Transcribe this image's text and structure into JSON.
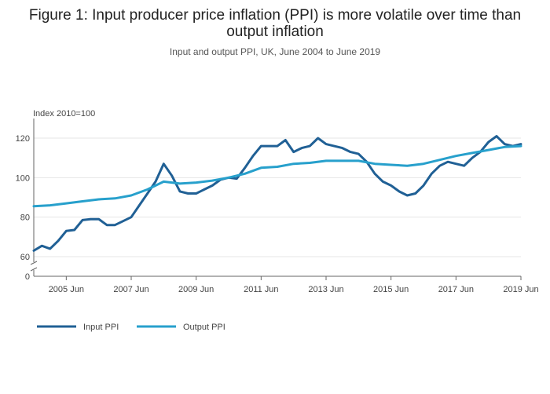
{
  "header": {
    "title_line1": "Figure 1: Input producer price inflation (PPI) is more volatile over time than",
    "title_line2": "output inflation",
    "subtitle": "Input and output PPI, UK, June 2004 to June 2019"
  },
  "chart_data": {
    "type": "line",
    "title": "Figure 1: Input producer price inflation (PPI) is more volatile over time than output inflation",
    "subtitle": "Input and output PPI, UK, June 2004 to June 2019",
    "ylabel": "Index 2010=100",
    "xlabel": "",
    "ylim": [
      60,
      130
    ],
    "y_axis_break": true,
    "y_ticks": [
      0,
      60,
      80,
      100,
      120
    ],
    "x_tick_labels": [
      "2005 Jun",
      "2007 Jun",
      "2009 Jun",
      "2011 Jun",
      "2013 Jun",
      "2015 Jun",
      "2017 Jun",
      "2019 Jun"
    ],
    "x_tick_dates": [
      "2005-06",
      "2007-06",
      "2009-06",
      "2011-06",
      "2013-06",
      "2015-06",
      "2017-06",
      "2019-06"
    ],
    "x_range": [
      "2004-06",
      "2019-06"
    ],
    "grid": true,
    "legend_position": "bottom-left",
    "series": [
      {
        "name": "Input PPI",
        "color": "#206095",
        "points": [
          [
            "2004-06",
            63
          ],
          [
            "2004-09",
            65.5
          ],
          [
            "2004-12",
            64
          ],
          [
            "2005-03",
            68
          ],
          [
            "2005-06",
            73
          ],
          [
            "2005-09",
            73.5
          ],
          [
            "2005-12",
            78.5
          ],
          [
            "2006-03",
            79
          ],
          [
            "2006-06",
            79
          ],
          [
            "2006-09",
            76
          ],
          [
            "2006-12",
            76
          ],
          [
            "2007-03",
            78
          ],
          [
            "2007-06",
            80
          ],
          [
            "2007-09",
            86
          ],
          [
            "2007-12",
            92
          ],
          [
            "2008-03",
            98
          ],
          [
            "2008-06",
            107
          ],
          [
            "2008-09",
            101
          ],
          [
            "2008-12",
            93
          ],
          [
            "2009-03",
            92
          ],
          [
            "2009-06",
            92
          ],
          [
            "2009-09",
            94
          ],
          [
            "2009-12",
            96
          ],
          [
            "2010-03",
            99
          ],
          [
            "2010-06",
            100
          ],
          [
            "2010-09",
            99.5
          ],
          [
            "2010-12",
            105
          ],
          [
            "2011-03",
            111
          ],
          [
            "2011-06",
            116
          ],
          [
            "2011-09",
            116
          ],
          [
            "2011-12",
            116
          ],
          [
            "2012-03",
            119
          ],
          [
            "2012-06",
            113
          ],
          [
            "2012-09",
            115
          ],
          [
            "2012-12",
            116
          ],
          [
            "2013-03",
            120
          ],
          [
            "2013-06",
            117
          ],
          [
            "2013-09",
            116
          ],
          [
            "2013-12",
            115
          ],
          [
            "2014-03",
            113
          ],
          [
            "2014-06",
            112
          ],
          [
            "2014-09",
            108
          ],
          [
            "2014-12",
            102
          ],
          [
            "2015-03",
            98
          ],
          [
            "2015-06",
            96
          ],
          [
            "2015-09",
            93
          ],
          [
            "2015-12",
            91
          ],
          [
            "2016-03",
            92
          ],
          [
            "2016-06",
            96
          ],
          [
            "2016-09",
            102
          ],
          [
            "2016-12",
            106
          ],
          [
            "2017-03",
            108
          ],
          [
            "2017-06",
            107
          ],
          [
            "2017-09",
            106
          ],
          [
            "2017-12",
            110
          ],
          [
            "2018-03",
            113
          ],
          [
            "2018-06",
            118
          ],
          [
            "2018-09",
            121
          ],
          [
            "2018-12",
            117
          ],
          [
            "2019-03",
            116
          ],
          [
            "2019-06",
            117
          ]
        ]
      },
      {
        "name": "Output PPI",
        "color": "#27a0cc",
        "points": [
          [
            "2004-06",
            85.5
          ],
          [
            "2004-12",
            86
          ],
          [
            "2005-06",
            87
          ],
          [
            "2005-12",
            88
          ],
          [
            "2006-06",
            89
          ],
          [
            "2006-12",
            89.5
          ],
          [
            "2007-06",
            91
          ],
          [
            "2007-12",
            94
          ],
          [
            "2008-06",
            98
          ],
          [
            "2008-12",
            97
          ],
          [
            "2009-06",
            97.5
          ],
          [
            "2009-12",
            98.5
          ],
          [
            "2010-06",
            100
          ],
          [
            "2010-12",
            102
          ],
          [
            "2011-06",
            105
          ],
          [
            "2011-12",
            105.5
          ],
          [
            "2012-06",
            107
          ],
          [
            "2012-12",
            107.5
          ],
          [
            "2013-06",
            108.5
          ],
          [
            "2013-12",
            108.5
          ],
          [
            "2014-06",
            108.5
          ],
          [
            "2014-12",
            107
          ],
          [
            "2015-06",
            106.5
          ],
          [
            "2015-12",
            106
          ],
          [
            "2016-06",
            107
          ],
          [
            "2016-12",
            109
          ],
          [
            "2017-06",
            111
          ],
          [
            "2017-12",
            112.5
          ],
          [
            "2018-06",
            114
          ],
          [
            "2018-12",
            115.5
          ],
          [
            "2019-06",
            116
          ]
        ]
      }
    ]
  }
}
